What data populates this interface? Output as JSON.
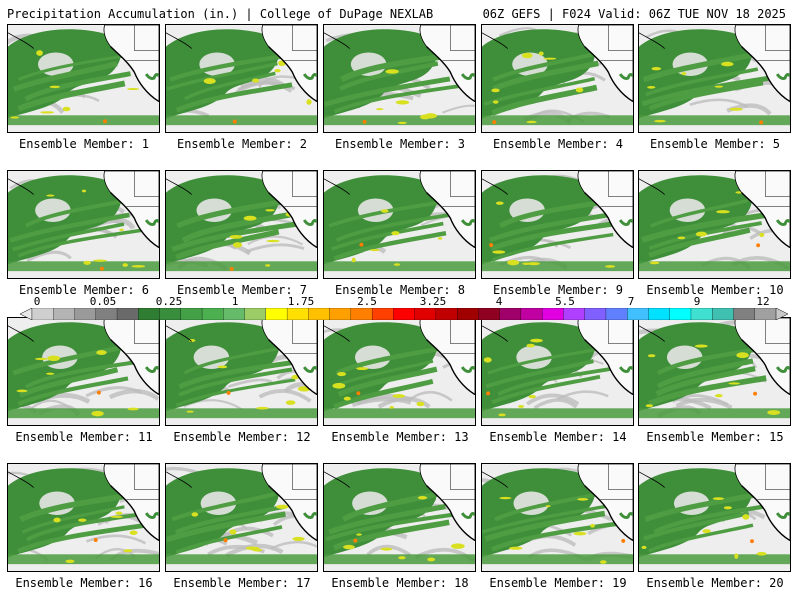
{
  "header": {
    "title": "Precipitation Accumulation (in.) | College of DuPage NEXLAB",
    "run_info": "06Z GEFS | F024 Valid: 06Z TUE NOV 18 2025"
  },
  "members": [
    "Ensemble Member: 1",
    "Ensemble Member: 2",
    "Ensemble Member: 3",
    "Ensemble Member: 4",
    "Ensemble Member: 5",
    "Ensemble Member: 6",
    "Ensemble Member: 7",
    "Ensemble Member: 8",
    "Ensemble Member: 9",
    "Ensemble Member: 10",
    "Ensemble Member: 11",
    "Ensemble Member: 12",
    "Ensemble Member: 13",
    "Ensemble Member: 14",
    "Ensemble Member: 15",
    "Ensemble Member: 16",
    "Ensemble Member: 17",
    "Ensemble Member: 18",
    "Ensemble Member: 19",
    "Ensemble Member: 20"
  ],
  "colorbar": {
    "tick_labels": [
      "0",
      "0.05",
      "0.25",
      "1",
      "1.75",
      "2.5",
      "3.25",
      "4",
      "5.5",
      "7",
      "9",
      "12"
    ],
    "colors": [
      "#e8e8e8",
      "#cfcfcf",
      "#b4b4b4",
      "#9a9a9a",
      "#808080",
      "#6a6a6a",
      "#2e7d32",
      "#388e3c",
      "#43a047",
      "#4caf50",
      "#66bb6a",
      "#9ccc65",
      "#ffff00",
      "#ffe000",
      "#ffc000",
      "#ff9f00",
      "#ff7f00",
      "#ff4000",
      "#ff0000",
      "#e00000",
      "#c00000",
      "#a00000",
      "#900020",
      "#a0006a",
      "#c000a0",
      "#e000e0",
      "#b040ff",
      "#8060ff",
      "#6080ff",
      "#40c0ff",
      "#00e0ff",
      "#00ffff",
      "#40e0d0",
      "#40c0b0",
      "#808080",
      "#a0a0a0",
      "#c8c8c8"
    ]
  }
}
